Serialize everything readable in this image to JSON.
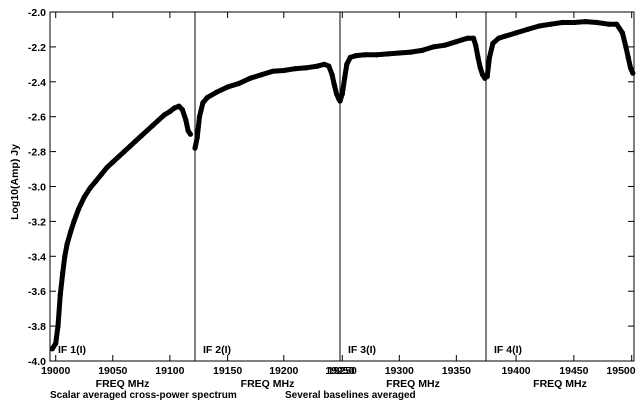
{
  "chart_data": {
    "type": "line",
    "title": "",
    "ylabel": "Log10(Amp) Jy",
    "xlabel": "FREQ MHz",
    "ylim": [
      -4.0,
      -2.0
    ],
    "y_ticks": [
      -2.0,
      -2.2,
      -2.4,
      -2.6,
      -2.8,
      -3.0,
      -3.2,
      -3.4,
      -3.6,
      -3.8,
      -4.0
    ],
    "y_tick_labels": [
      "-2.0",
      "-2.2",
      "-2.4",
      "-2.6",
      "-2.8",
      "-3.0",
      "-3.2",
      "-3.4",
      "-3.6",
      "-3.8",
      "-4.0"
    ],
    "caption_left": "Scalar averaged cross-power spectrum",
    "caption_right": "Several baselines averaged",
    "panels": [
      {
        "name": "IF 1(I)",
        "xlim": [
          18995,
          19122
        ],
        "x_ticks": [
          19000,
          19050,
          19100
        ],
        "x_tick_labels": [
          "19000",
          "19050",
          "19100"
        ],
        "points": [
          [
            18997,
            -3.93
          ],
          [
            19000,
            -3.9
          ],
          [
            19002,
            -3.8
          ],
          [
            19004,
            -3.62
          ],
          [
            19006,
            -3.5
          ],
          [
            19008,
            -3.4
          ],
          [
            19010,
            -3.33
          ],
          [
            19013,
            -3.26
          ],
          [
            19016,
            -3.2
          ],
          [
            19020,
            -3.13
          ],
          [
            19025,
            -3.06
          ],
          [
            19030,
            -3.01
          ],
          [
            19035,
            -2.97
          ],
          [
            19040,
            -2.93
          ],
          [
            19045,
            -2.89
          ],
          [
            19050,
            -2.86
          ],
          [
            19055,
            -2.83
          ],
          [
            19060,
            -2.8
          ],
          [
            19065,
            -2.77
          ],
          [
            19070,
            -2.74
          ],
          [
            19075,
            -2.71
          ],
          [
            19080,
            -2.68
          ],
          [
            19085,
            -2.65
          ],
          [
            19090,
            -2.62
          ],
          [
            19095,
            -2.59
          ],
          [
            19100,
            -2.57
          ],
          [
            19104,
            -2.55
          ],
          [
            19108,
            -2.54
          ],
          [
            19111,
            -2.56
          ],
          [
            19114,
            -2.62
          ],
          [
            19116,
            -2.68
          ],
          [
            19118,
            -2.7
          ]
        ]
      },
      {
        "name": "IF 2(I)",
        "xlim": [
          19121,
          19250
        ],
        "x_ticks": [
          19150,
          19200,
          19250
        ],
        "x_tick_labels": [
          "19150",
          "19200",
          "19250"
        ],
        "points": [
          [
            19121,
            -2.78
          ],
          [
            19123,
            -2.72
          ],
          [
            19125,
            -2.6
          ],
          [
            19128,
            -2.52
          ],
          [
            19132,
            -2.49
          ],
          [
            19140,
            -2.46
          ],
          [
            19150,
            -2.43
          ],
          [
            19160,
            -2.41
          ],
          [
            19170,
            -2.38
          ],
          [
            19180,
            -2.36
          ],
          [
            19190,
            -2.34
          ],
          [
            19200,
            -2.335
          ],
          [
            19210,
            -2.325
          ],
          [
            19220,
            -2.32
          ],
          [
            19230,
            -2.31
          ],
          [
            19236,
            -2.3
          ],
          [
            19240,
            -2.31
          ],
          [
            19243,
            -2.36
          ],
          [
            19245,
            -2.42
          ],
          [
            19247,
            -2.47
          ],
          [
            19249,
            -2.5
          ]
        ]
      },
      {
        "name": "IF 3(I)",
        "xlim": [
          19248,
          19376
        ],
        "x_ticks": [
          19250,
          19300,
          19350
        ],
        "x_tick_labels": [
          "19250",
          "19300",
          "19350"
        ],
        "points": [
          [
            19248,
            -2.51
          ],
          [
            19250,
            -2.47
          ],
          [
            19252,
            -2.38
          ],
          [
            19254,
            -2.3
          ],
          [
            19257,
            -2.26
          ],
          [
            19262,
            -2.25
          ],
          [
            19270,
            -2.245
          ],
          [
            19280,
            -2.245
          ],
          [
            19290,
            -2.24
          ],
          [
            19300,
            -2.235
          ],
          [
            19310,
            -2.23
          ],
          [
            19320,
            -2.22
          ],
          [
            19330,
            -2.2
          ],
          [
            19340,
            -2.19
          ],
          [
            19350,
            -2.17
          ],
          [
            19355,
            -2.16
          ],
          [
            19360,
            -2.15
          ],
          [
            19365,
            -2.15
          ],
          [
            19367,
            -2.19
          ],
          [
            19369,
            -2.26
          ],
          [
            19371,
            -2.32
          ],
          [
            19373,
            -2.36
          ],
          [
            19375,
            -2.38
          ]
        ]
      },
      {
        "name": "IF 4(I)",
        "xlim": [
          19374,
          19502
        ],
        "x_ticks": [
          19400,
          19450,
          19500
        ],
        "x_tick_labels": [
          "19400",
          "19450",
          "19500"
        ],
        "points": [
          [
            19375,
            -2.37
          ],
          [
            19377,
            -2.26
          ],
          [
            19380,
            -2.18
          ],
          [
            19385,
            -2.15
          ],
          [
            19390,
            -2.14
          ],
          [
            19400,
            -2.12
          ],
          [
            19410,
            -2.1
          ],
          [
            19420,
            -2.08
          ],
          [
            19430,
            -2.07
          ],
          [
            19440,
            -2.06
          ],
          [
            19450,
            -2.06
          ],
          [
            19460,
            -2.055
          ],
          [
            19470,
            -2.06
          ],
          [
            19480,
            -2.07
          ],
          [
            19487,
            -2.07
          ],
          [
            19492,
            -2.12
          ],
          [
            19495,
            -2.2
          ],
          [
            19497,
            -2.26
          ],
          [
            19499,
            -2.32
          ],
          [
            19501,
            -2.35
          ]
        ]
      }
    ]
  }
}
